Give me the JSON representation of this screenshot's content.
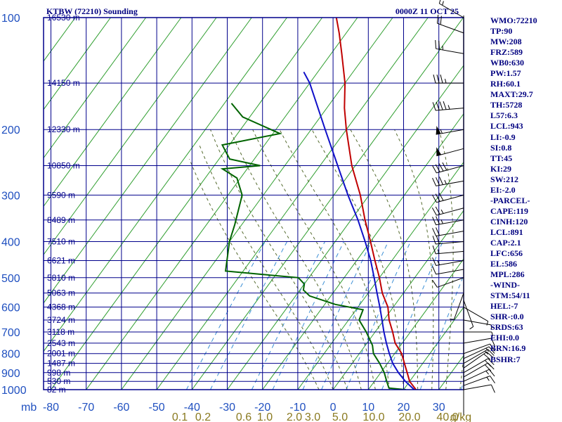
{
  "header": {
    "title": "KTBW (72210) Sounding",
    "time": "0000Z 11 OCT 25"
  },
  "colors": {
    "frame": "#00008b",
    "isotherm": "#2f9e2f",
    "mixing": "#3b8fd6",
    "moist": "#556b2f",
    "temperature": "#c00000",
    "dewpoint": "#006400",
    "parcel": "#1010c8",
    "axis_text": "#2050c0",
    "mixing_text": "#8a7a20",
    "wind": "#000000"
  },
  "chart_data": {
    "type": "skew-t",
    "pressure_levels": [
      100,
      200,
      300,
      400,
      500,
      600,
      700,
      800,
      900,
      1000
    ],
    "pressure_axis_prefix": "mb",
    "temperature_ticks": [
      -80,
      -70,
      -60,
      -50,
      -40,
      -30,
      -20,
      -10,
      0,
      10,
      20,
      30
    ],
    "height_labels": [
      {
        "p": 100,
        "label": "16530 m"
      },
      {
        "p": 150,
        "label": "14150 m"
      },
      {
        "p": 200,
        "label": "12330 m"
      },
      {
        "p": 250,
        "label": "10850 m"
      },
      {
        "p": 300,
        "label": "9590 m"
      },
      {
        "p": 350,
        "label": "8489 m"
      },
      {
        "p": 400,
        "label": "7510 m"
      },
      {
        "p": 450,
        "label": "6621 m"
      },
      {
        "p": 500,
        "label": "5810 m"
      },
      {
        "p": 550,
        "label": "5063 m"
      },
      {
        "p": 600,
        "label": "4368 m"
      },
      {
        "p": 650,
        "label": "3724 m"
      },
      {
        "p": 700,
        "label": "3118 m"
      },
      {
        "p": 750,
        "label": "2543 m"
      },
      {
        "p": 800,
        "label": "2001 m"
      },
      {
        "p": 850,
        "label": "1487 m"
      },
      {
        "p": 900,
        "label": "998 m"
      },
      {
        "p": 950,
        "label": "530 m"
      },
      {
        "p": 1000,
        "label": "82 m"
      }
    ],
    "mixing_ratio_labels": [
      "0.1",
      "0.2",
      "0.6",
      "1.0",
      "2.0",
      "3.0",
      "5.0",
      "10.0",
      "20.0",
      "40.0",
      "g/kg"
    ],
    "mixing_ratio_values": [
      0.1,
      0.2,
      0.6,
      1.0,
      2.0,
      3.0,
      5.0,
      10.0,
      20.0,
      40.0
    ],
    "temperature_profile": [
      [
        1016,
        26.0
      ],
      [
        1000,
        23.5
      ],
      [
        950,
        20.0
      ],
      [
        900,
        17.5
      ],
      [
        850,
        14.8
      ],
      [
        800,
        12.0
      ],
      [
        750,
        8.0
      ],
      [
        700,
        5.0
      ],
      [
        650,
        1.5
      ],
      [
        600,
        -1.5
      ],
      [
        550,
        -6.0
      ],
      [
        500,
        -10.0
      ],
      [
        450,
        -14.8
      ],
      [
        400,
        -20.0
      ],
      [
        350,
        -26.0
      ],
      [
        300,
        -32.5
      ],
      [
        250,
        -41.0
      ],
      [
        200,
        -50.0
      ],
      [
        175,
        -55.0
      ],
      [
        150,
        -60.0
      ],
      [
        125,
        -67.0
      ],
      [
        110,
        -72.0
      ],
      [
        100,
        -76.0
      ]
    ],
    "dewpoint_profile": [
      [
        1016,
        21.0
      ],
      [
        1000,
        20.5
      ],
      [
        990,
        15.5
      ],
      [
        950,
        13.5
      ],
      [
        900,
        11.0
      ],
      [
        850,
        7.8
      ],
      [
        800,
        4.0
      ],
      [
        760,
        2.0
      ],
      [
        700,
        -2.5
      ],
      [
        650,
        -7.0
      ],
      [
        610,
        -8.0
      ],
      [
        590,
        -17.0
      ],
      [
        560,
        -26.0
      ],
      [
        540,
        -29.0
      ],
      [
        520,
        -30.0
      ],
      [
        500,
        -33.0
      ],
      [
        490,
        -44.0
      ],
      [
        480,
        -55.0
      ],
      [
        400,
        -60.0
      ],
      [
        360,
        -62.0
      ],
      [
        300,
        -66.0
      ],
      [
        270,
        -71.0
      ],
      [
        255,
        -77.0
      ],
      [
        250,
        -67.0
      ],
      [
        240,
        -77.0
      ],
      [
        220,
        -82.0
      ],
      [
        205,
        -68.0
      ],
      [
        185,
        -82.0
      ],
      [
        170,
        -88.0
      ]
    ],
    "parcel_profile": [
      [
        1016,
        26.0
      ],
      [
        1000,
        23.0
      ],
      [
        950,
        18.8
      ],
      [
        900,
        15.0
      ],
      [
        850,
        11.5
      ],
      [
        800,
        8.5
      ],
      [
        750,
        5.5
      ],
      [
        700,
        2.5
      ],
      [
        650,
        -0.5
      ],
      [
        600,
        -3.8
      ],
      [
        550,
        -7.5
      ],
      [
        500,
        -11.5
      ],
      [
        450,
        -16.0
      ],
      [
        400,
        -21.5
      ],
      [
        350,
        -28.0
      ],
      [
        300,
        -36.0
      ],
      [
        250,
        -45.0
      ],
      [
        200,
        -56.0
      ],
      [
        150,
        -70.0
      ],
      [
        140,
        -74.0
      ]
    ],
    "wind_barbs": [
      {
        "p": 1000,
        "dir": 80,
        "spd": 10
      },
      {
        "p": 975,
        "dir": 70,
        "spd": 15
      },
      {
        "p": 950,
        "dir": 65,
        "spd": 15
      },
      {
        "p": 925,
        "dir": 60,
        "spd": 20
      },
      {
        "p": 900,
        "dir": 60,
        "spd": 20
      },
      {
        "p": 875,
        "dir": 55,
        "spd": 20
      },
      {
        "p": 850,
        "dir": 60,
        "spd": 15
      },
      {
        "p": 825,
        "dir": 65,
        "spd": 15
      },
      {
        "p": 800,
        "dir": 70,
        "spd": 10
      },
      {
        "p": 750,
        "dir": 80,
        "spd": 10
      },
      {
        "p": 700,
        "dir": 90,
        "spd": 5
      },
      {
        "p": 650,
        "dir": 100,
        "spd": 5
      },
      {
        "p": 600,
        "dir": 120,
        "spd": 5
      },
      {
        "p": 575,
        "dir": 160,
        "spd": 5
      },
      {
        "p": 550,
        "dir": 200,
        "spd": 5
      },
      {
        "p": 500,
        "dir": 250,
        "spd": 10
      },
      {
        "p": 475,
        "dir": 260,
        "spd": 10
      },
      {
        "p": 450,
        "dir": 260,
        "spd": 15
      },
      {
        "p": 425,
        "dir": 265,
        "spd": 15
      },
      {
        "p": 400,
        "dir": 265,
        "spd": 20
      },
      {
        "p": 375,
        "dir": 260,
        "spd": 20
      },
      {
        "p": 350,
        "dir": 260,
        "spd": 25
      },
      {
        "p": 325,
        "dir": 255,
        "spd": 25
      },
      {
        "p": 300,
        "dir": 255,
        "spd": 30
      },
      {
        "p": 275,
        "dir": 260,
        "spd": 35
      },
      {
        "p": 250,
        "dir": 255,
        "spd": 40
      },
      {
        "p": 225,
        "dir": 255,
        "spd": 50
      },
      {
        "p": 200,
        "dir": 260,
        "spd": 55
      },
      {
        "p": 175,
        "dir": 265,
        "spd": 45
      },
      {
        "p": 150,
        "dir": 270,
        "spd": 35
      },
      {
        "p": 125,
        "dir": 280,
        "spd": 25
      },
      {
        "p": 110,
        "dir": 290,
        "spd": 20
      },
      {
        "p": 100,
        "dir": 300,
        "spd": 15
      }
    ]
  },
  "stats": [
    "WMO:72210",
    "TP:90",
    "MW:208",
    "FRZ:589",
    "WB0:630",
    "PW:1.57",
    "RH:60.1",
    "MAXT:29.7",
    "TH:5728",
    "L57:6.3",
    "LCL:943",
    "LI:-0.9",
    "SI:0.8",
    "TT:45",
    "KI:29",
    "SW:212",
    "EI:-2.0",
    "-PARCEL-",
    "CAPE:119",
    "CINH:120",
    "LCL:891",
    "CAP:2.1",
    "LFC:656",
    "EL:586",
    "MPL:286",
    "-WIND-",
    "STM:54/11",
    "HEL:-7",
    "SHR-:0.0",
    "SRDS:63",
    "EHI:0.0",
    "BRN:16.9",
    "BSHR:7"
  ]
}
